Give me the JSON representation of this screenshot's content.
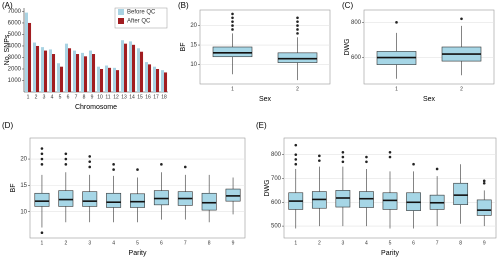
{
  "chart_data": [
    {
      "type": "bar",
      "panel_label": "(A)",
      "x_label": "Chromosome",
      "y_label": "No. SNPs",
      "categories": [
        "1",
        "2",
        "3",
        "4",
        "5",
        "6",
        "7",
        "8",
        "9",
        "10",
        "11",
        "12",
        "13",
        "14",
        "15",
        "16",
        "17",
        "18"
      ],
      "series": [
        {
          "name": "Before QC",
          "color": "#a9d3e3",
          "values": [
            6900,
            4300,
            3900,
            3700,
            2500,
            4200,
            3600,
            3400,
            3600,
            2200,
            2300,
            2100,
            4500,
            4400,
            3800,
            2600,
            2200,
            1900
          ]
        },
        {
          "name": "After QC",
          "color": "#a11d21",
          "values": [
            6000,
            4000,
            3600,
            3300,
            2200,
            3800,
            3300,
            3100,
            3300,
            2000,
            2100,
            1900,
            4200,
            4100,
            3500,
            2400,
            2000,
            1700
          ]
        }
      ],
      "ylim": [
        0,
        7300
      ],
      "yticks": [
        1000,
        2000,
        3000,
        4000,
        5000,
        6000,
        7000
      ],
      "legend": "top-right"
    },
    {
      "type": "box",
      "panel_label": "(B)",
      "x_label": "Sex",
      "y_label": "BF",
      "color": "#a6d6e6",
      "categories": [
        "1",
        "2"
      ],
      "low": [
        7.5,
        6
      ],
      "q1": [
        12,
        10.5
      ],
      "median": [
        13,
        11.5
      ],
      "q3": [
        14.5,
        13
      ],
      "high": [
        18,
        17
      ],
      "outliers": [
        [
          19,
          20,
          21,
          22,
          23
        ],
        [
          18,
          19,
          20,
          21,
          22
        ]
      ],
      "ylim": [
        5,
        24
      ],
      "yticks": [
        10,
        15,
        20
      ],
      "grid": true
    },
    {
      "type": "box",
      "panel_label": "(C)",
      "x_label": "Sex",
      "y_label": "DWG",
      "color": "#a6d6e6",
      "categories": [
        "1",
        "2"
      ],
      "low": [
        480,
        500
      ],
      "q1": [
        560,
        580
      ],
      "median": [
        600,
        620
      ],
      "q3": [
        635,
        660
      ],
      "high": [
        740,
        780
      ],
      "outliers": [
        [
          800
        ],
        [
          820
        ]
      ],
      "ylim": [
        450,
        870
      ],
      "yticks": [
        600,
        800
      ],
      "grid": true
    },
    {
      "type": "box",
      "panel_label": "(D)",
      "x_label": "Parity",
      "y_label": "BF",
      "color": "#a6d6e6",
      "categories": [
        "1",
        "2",
        "3",
        "4",
        "5",
        "6",
        "7",
        "8",
        "9"
      ],
      "low": [
        7,
        8,
        8,
        8,
        8,
        8.5,
        8.5,
        8,
        9.5
      ],
      "q1": [
        11,
        11,
        11,
        10.8,
        10.8,
        11.3,
        11.2,
        10.3,
        12
      ],
      "median": [
        12,
        12.3,
        12,
        11.8,
        11.9,
        12.5,
        12.5,
        11.7,
        13
      ],
      "q3": [
        13.5,
        14,
        13.8,
        13.5,
        13.4,
        14,
        13.8,
        13.5,
        14.3
      ],
      "high": [
        17,
        17.5,
        17,
        16.8,
        16.5,
        17.5,
        17,
        17,
        16.5
      ],
      "outliers": [
        [
          6,
          19,
          20,
          21,
          22
        ],
        [
          19,
          20,
          21
        ],
        [
          18.5,
          19.5,
          20.5
        ],
        [
          18,
          19
        ],
        [
          18
        ],
        [
          19
        ],
        [
          18.5
        ],
        [],
        []
      ],
      "ylim": [
        5,
        24
      ],
      "yticks": [
        10,
        15,
        20
      ],
      "grid": true
    },
    {
      "type": "box",
      "panel_label": "(E)",
      "x_label": "Parity",
      "y_label": "DWG",
      "color": "#a6d6e6",
      "categories": [
        "1",
        "2",
        "3",
        "4",
        "5",
        "6",
        "7",
        "8",
        "9"
      ],
      "low": [
        490,
        500,
        500,
        500,
        490,
        490,
        500,
        510,
        500
      ],
      "q1": [
        570,
        575,
        580,
        578,
        570,
        565,
        570,
        590,
        545
      ],
      "median": [
        605,
        612,
        618,
        615,
        608,
        600,
        598,
        630,
        567
      ],
      "q3": [
        640,
        645,
        650,
        645,
        640,
        640,
        630,
        680,
        610
      ],
      "high": [
        740,
        750,
        750,
        740,
        730,
        730,
        710,
        760,
        650
      ],
      "outliers": [
        [
          760,
          780,
          800,
          840
        ],
        [
          775,
          795
        ],
        [
          770,
          790,
          810
        ],
        [
          770,
          790
        ],
        [
          790,
          810
        ],
        [
          760
        ],
        [
          740
        ],
        [],
        [
          680,
          690
        ]
      ],
      "ylim": [
        450,
        870
      ],
      "yticks": [
        500,
        600,
        700,
        800
      ],
      "grid": true
    }
  ]
}
